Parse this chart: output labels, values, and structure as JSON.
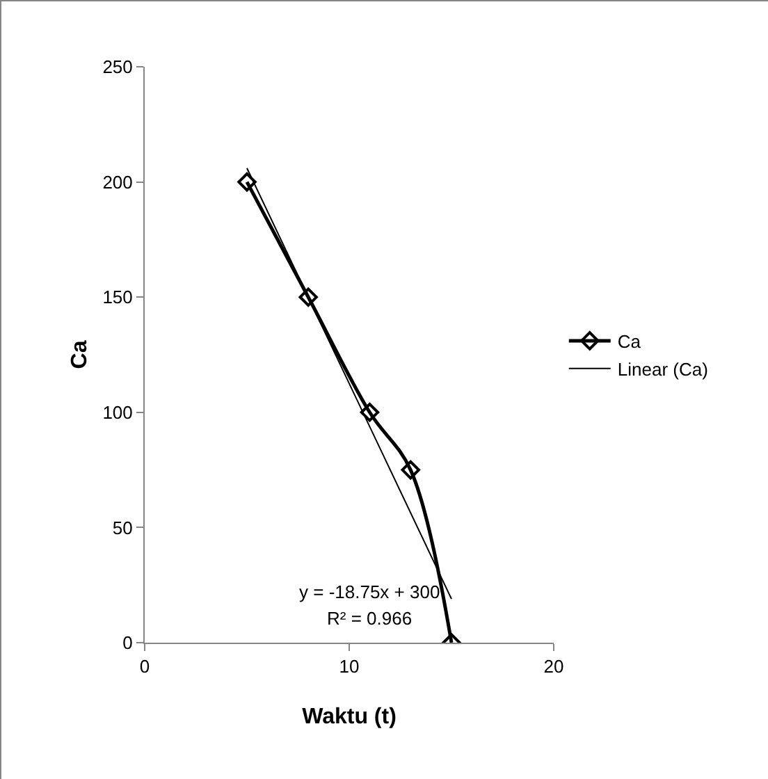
{
  "chart_data": {
    "type": "line",
    "xlabel": "Waktu (t)",
    "ylabel": "Ca",
    "x": [
      5,
      8,
      11,
      13,
      15
    ],
    "series": [
      {
        "name": "Ca",
        "color": "#000000",
        "values": [
          200,
          150,
          100,
          75,
          0
        ],
        "marker": "diamond",
        "line_style": "solid"
      },
      {
        "name": "Linear (Ca)",
        "color": "#000000",
        "type": "line",
        "x": [
          5,
          15
        ],
        "values": [
          206,
          19
        ],
        "marker": "none",
        "line_style": "solid"
      }
    ],
    "xlim": [
      0,
      20
    ],
    "xticks": [
      0,
      10,
      20
    ],
    "ylim": [
      0,
      250
    ],
    "yticks": [
      0,
      50,
      100,
      150,
      200,
      250
    ],
    "grid": false,
    "legend": "right",
    "annotations": [
      "y = -18.75x + 300",
      "R² = 0.966"
    ]
  }
}
